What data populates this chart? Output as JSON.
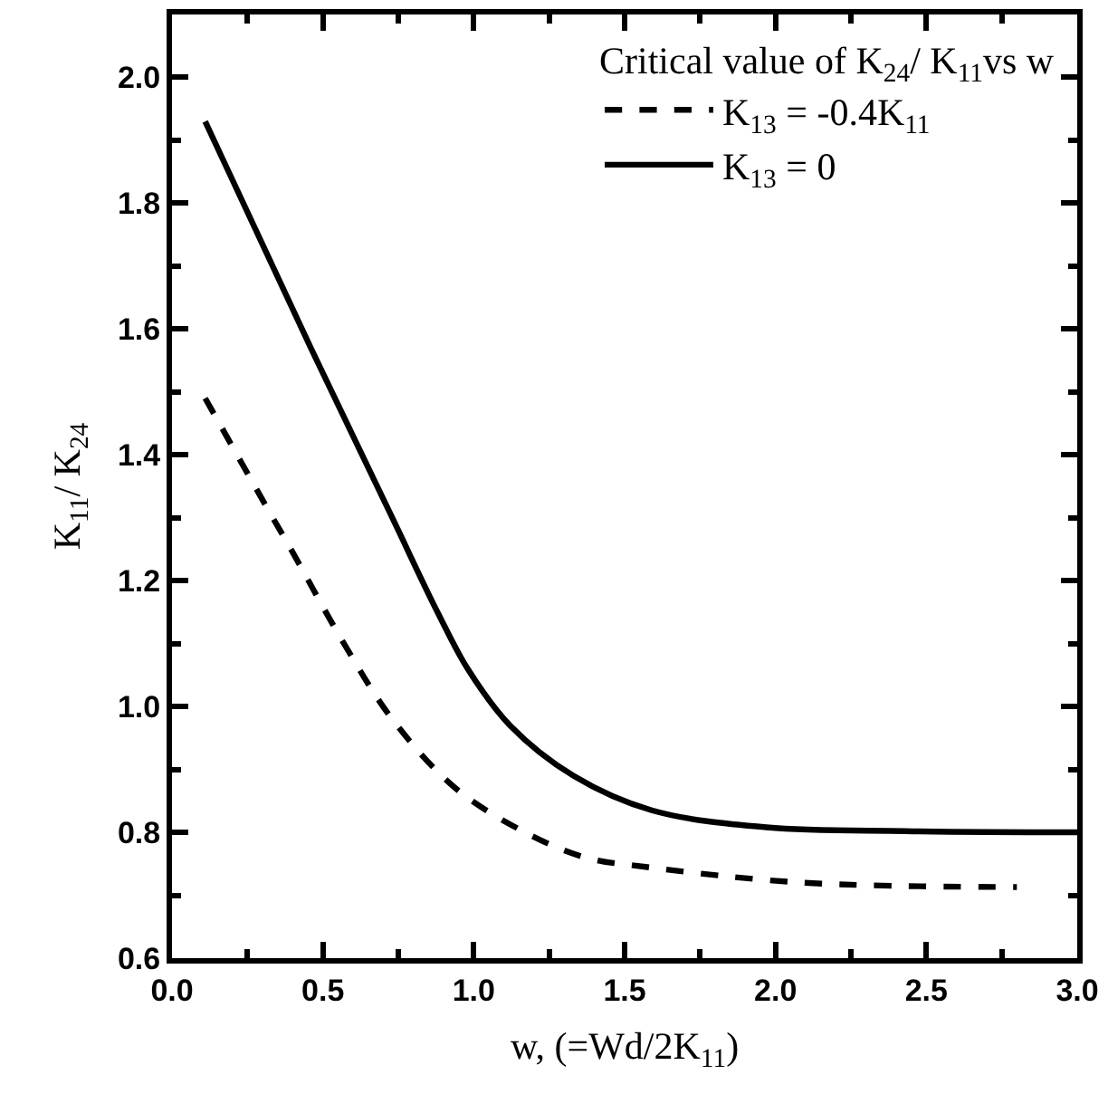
{
  "chart_data": {
    "type": "line",
    "xlabel": "w, (=Wd/2K$_{11}$)",
    "ylabel": "K$_{11}$/ K$_{24}$",
    "legend_title": "Critical value of K$_{24}$/ K$_{11}$vs w",
    "legend": "top right",
    "marker": "none",
    "xlim": [
      0,
      3.0
    ],
    "ylim": [
      0.6,
      2.1
    ],
    "xticks": [
      {
        "value": 0,
        "label": "0.0"
      },
      {
        "value": 0.25,
        "label": null
      },
      0.5,
      {
        "value": 0.75,
        "label": null
      },
      {
        "value": 1,
        "label": "1.0"
      },
      {
        "value": 1.25,
        "label": null
      },
      1.5,
      {
        "value": 1.75,
        "label": null
      },
      {
        "value": 2,
        "label": "2.0"
      },
      {
        "value": 2.25,
        "label": null
      },
      2.5,
      {
        "value": 2.75,
        "label": null
      },
      {
        "value": 3,
        "label": "3.0"
      }
    ],
    "yticks": [
      0.6,
      {
        "value": 0.7,
        "label": null
      },
      0.8,
      {
        "value": 0.9,
        "label": null
      },
      {
        "value": 1,
        "label": "1.0"
      },
      {
        "value": 1.1,
        "label": null
      },
      1.2,
      {
        "value": 1.3,
        "label": null
      },
      1.4,
      {
        "value": 1.5,
        "label": null
      },
      1.6,
      {
        "value": 1.7,
        "label": null
      },
      1.8,
      {
        "value": 1.9,
        "label": null
      },
      {
        "value": 2,
        "label": "2.0"
      }
    ],
    "series": [
      {
        "name": "K$_{13}$ = -0.4K$_{11}$",
        "color": "#000000",
        "line_style": "dashed",
        "x": [
          0.11,
          0.31,
          0.4,
          0.57,
          0.73,
          0.94,
          1.17,
          1.37,
          1.57,
          2.09,
          2.8
        ],
        "values": [
          1.49,
          1.32,
          1.245,
          1.1,
          0.98,
          0.87,
          0.8,
          0.76,
          0.745,
          0.72,
          0.713
        ]
      },
      {
        "name": "K$_{13}$ = 0",
        "color": "#000000",
        "line_style": "solid",
        "x": [
          0.11,
          0.46,
          0.73,
          0.88,
          0.98,
          1.12,
          1.33,
          1.59,
          1.97,
          2.43,
          3.0
        ],
        "values": [
          1.93,
          1.57,
          1.3,
          1.15,
          1.06,
          0.97,
          0.89,
          0.835,
          0.808,
          0.802,
          0.8
        ]
      }
    ]
  }
}
